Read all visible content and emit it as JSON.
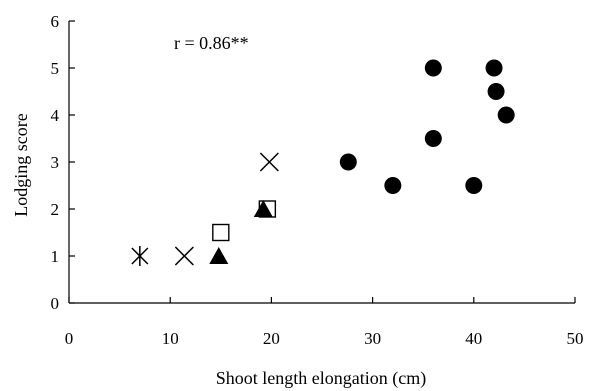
{
  "chart_data": {
    "type": "scatter",
    "xlabel": "Shoot length elongation (cm)",
    "ylabel": "Lodging score",
    "xlim": [
      0,
      50
    ],
    "ylim": [
      0,
      6
    ],
    "xticks": [
      "0",
      "10",
      "20",
      "30",
      "40",
      "50"
    ],
    "yticks": [
      "0",
      "1",
      "2",
      "3",
      "4",
      "5",
      "6"
    ],
    "annotation": "r = 0.86**",
    "grid": false,
    "legend": "none",
    "series": [
      {
        "marker": "filled-circle",
        "points": [
          {
            "x": 27.6,
            "y": 3.0
          },
          {
            "x": 32.0,
            "y": 2.5
          },
          {
            "x": 36.0,
            "y": 5.0
          },
          {
            "x": 36.0,
            "y": 3.5
          },
          {
            "x": 40.0,
            "y": 2.5
          },
          {
            "x": 42.0,
            "y": 5.0
          },
          {
            "x": 42.2,
            "y": 4.5
          },
          {
            "x": 43.2,
            "y": 4.0
          }
        ]
      },
      {
        "marker": "open-square",
        "points": [
          {
            "x": 15.0,
            "y": 1.5
          },
          {
            "x": 19.6,
            "y": 2.0
          }
        ]
      },
      {
        "marker": "filled-triangle",
        "points": [
          {
            "x": 14.8,
            "y": 1.0
          },
          {
            "x": 19.2,
            "y": 2.0
          }
        ]
      },
      {
        "marker": "cross",
        "points": [
          {
            "x": 11.4,
            "y": 1.0
          },
          {
            "x": 19.8,
            "y": 3.0
          }
        ]
      },
      {
        "marker": "asterisk",
        "points": [
          {
            "x": 7.0,
            "y": 1.0
          }
        ]
      }
    ]
  }
}
